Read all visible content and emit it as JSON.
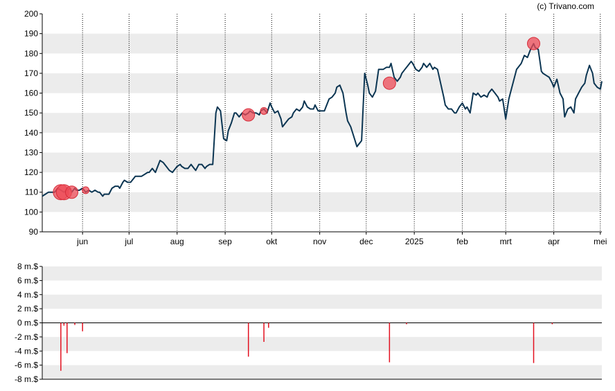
{
  "credit": "(c) Trivano.com",
  "colors": {
    "price_line": "#0b3552",
    "marker_fill": "#ee4b57",
    "marker_stroke": "#d62d3a",
    "volume_bar": "#e3101f",
    "band": "#ececec",
    "axis": "#000000"
  },
  "chart_data": [
    {
      "type": "line",
      "title": "",
      "xlabel": "",
      "ylabel": "",
      "ylim": [
        90,
        200
      ],
      "yticks": [
        "90",
        "100",
        "110",
        "120",
        "130",
        "140",
        "150",
        "160",
        "170",
        "180",
        "190",
        "200"
      ],
      "x_range": [
        "2024-05-06",
        "2025-05-02"
      ],
      "month_ticks": [
        {
          "label": "jun",
          "date": "2024-06-01"
        },
        {
          "label": "jul",
          "date": "2024-07-01"
        },
        {
          "label": "aug",
          "date": "2024-08-01"
        },
        {
          "label": "sep",
          "date": "2024-09-01"
        },
        {
          "label": "okt",
          "date": "2024-10-01"
        },
        {
          "label": "nov",
          "date": "2024-11-01"
        },
        {
          "label": "dec",
          "date": "2024-12-01"
        },
        {
          "label": "2025",
          "date": "2025-01-01"
        },
        {
          "label": "feb",
          "date": "2025-02-01"
        },
        {
          "label": "mrt",
          "date": "2025-03-01"
        },
        {
          "label": "apr",
          "date": "2025-04-01"
        },
        {
          "label": "mei",
          "date": "2025-05-01"
        }
      ],
      "grid": "alternating horizontal bands, dotted vertical month lines",
      "series": [
        {
          "points": [
            [
              "2024-05-06",
              108
            ],
            [
              "2024-05-08",
              109
            ],
            [
              "2024-05-10",
              110
            ],
            [
              "2024-05-14",
              110
            ],
            [
              "2024-05-16",
              112
            ],
            [
              "2024-05-18",
              111
            ],
            [
              "2024-05-20",
              110
            ],
            [
              "2024-05-22",
              111
            ],
            [
              "2024-05-24",
              112
            ],
            [
              "2024-05-25",
              110
            ],
            [
              "2024-05-27",
              112
            ],
            [
              "2024-05-28",
              111
            ],
            [
              "2024-05-30",
              111
            ],
            [
              "2024-06-01",
              112
            ],
            [
              "2024-06-03",
              110
            ],
            [
              "2024-06-05",
              111
            ],
            [
              "2024-06-07",
              110
            ],
            [
              "2024-06-09",
              111
            ],
            [
              "2024-06-11",
              110
            ],
            [
              "2024-06-12",
              110
            ],
            [
              "2024-06-14",
              108
            ],
            [
              "2024-06-15",
              109
            ],
            [
              "2024-06-17",
              109
            ],
            [
              "2024-06-18",
              109
            ],
            [
              "2024-06-20",
              112
            ],
            [
              "2024-06-22",
              113
            ],
            [
              "2024-06-24",
              113
            ],
            [
              "2024-06-25",
              112
            ],
            [
              "2024-06-27",
              115
            ],
            [
              "2024-06-28",
              116
            ],
            [
              "2024-06-30",
              115
            ],
            [
              "2024-07-02",
              115
            ],
            [
              "2024-07-04",
              117
            ],
            [
              "2024-07-05",
              118
            ],
            [
              "2024-07-07",
              118
            ],
            [
              "2024-07-09",
              118
            ],
            [
              "2024-07-11",
              119
            ],
            [
              "2024-07-13",
              120
            ],
            [
              "2024-07-14",
              120
            ],
            [
              "2024-07-16",
              122
            ],
            [
              "2024-07-18",
              120
            ],
            [
              "2024-07-19",
              122
            ],
            [
              "2024-07-21",
              126
            ],
            [
              "2024-07-23",
              125
            ],
            [
              "2024-07-25",
              123
            ],
            [
              "2024-07-27",
              121
            ],
            [
              "2024-07-29",
              120
            ],
            [
              "2024-07-30",
              121
            ],
            [
              "2024-08-01",
              123
            ],
            [
              "2024-08-03",
              124
            ],
            [
              "2024-08-04",
              123
            ],
            [
              "2024-08-06",
              122
            ],
            [
              "2024-08-08",
              122
            ],
            [
              "2024-08-10",
              124
            ],
            [
              "2024-08-12",
              122
            ],
            [
              "2024-08-13",
              121
            ],
            [
              "2024-08-15",
              124
            ],
            [
              "2024-08-17",
              124
            ],
            [
              "2024-08-19",
              122
            ],
            [
              "2024-08-20",
              123
            ],
            [
              "2024-08-22",
              124
            ],
            [
              "2024-08-24",
              124
            ],
            [
              "2024-08-26",
              150
            ],
            [
              "2024-08-27",
              153
            ],
            [
              "2024-08-29",
              151
            ],
            [
              "2024-08-31",
              137
            ],
            [
              "2024-09-02",
              136
            ],
            [
              "2024-09-03",
              141
            ],
            [
              "2024-09-05",
              145
            ],
            [
              "2024-09-07",
              150
            ],
            [
              "2024-09-08",
              150
            ],
            [
              "2024-09-10",
              148
            ],
            [
              "2024-09-12",
              150
            ],
            [
              "2024-09-14",
              149
            ],
            [
              "2024-09-16",
              150
            ],
            [
              "2024-09-17",
              151
            ],
            [
              "2024-09-19",
              150
            ],
            [
              "2024-09-21",
              150
            ],
            [
              "2024-09-23",
              149
            ],
            [
              "2024-09-24",
              151
            ],
            [
              "2024-09-26",
              152
            ],
            [
              "2024-09-28",
              150
            ],
            [
              "2024-09-30",
              155
            ],
            [
              "2024-10-01",
              153
            ],
            [
              "2024-10-03",
              150
            ],
            [
              "2024-10-05",
              151
            ],
            [
              "2024-10-07",
              147
            ],
            [
              "2024-10-08",
              143
            ],
            [
              "2024-10-10",
              145
            ],
            [
              "2024-10-12",
              147
            ],
            [
              "2024-10-14",
              148
            ],
            [
              "2024-10-15",
              150
            ],
            [
              "2024-10-17",
              152
            ],
            [
              "2024-10-19",
              151
            ],
            [
              "2024-10-21",
              153
            ],
            [
              "2024-10-22",
              156
            ],
            [
              "2024-10-24",
              153
            ],
            [
              "2024-10-26",
              152
            ],
            [
              "2024-10-28",
              152
            ],
            [
              "2024-10-29",
              154
            ],
            [
              "2024-10-31",
              151
            ],
            [
              "2024-11-02",
              151
            ],
            [
              "2024-11-04",
              151
            ],
            [
              "2024-11-05",
              153
            ],
            [
              "2024-11-07",
              157
            ],
            [
              "2024-11-09",
              158
            ],
            [
              "2024-11-11",
              160
            ],
            [
              "2024-11-12",
              163
            ],
            [
              "2024-11-14",
              164
            ],
            [
              "2024-11-16",
              160
            ],
            [
              "2024-11-18",
              150
            ],
            [
              "2024-11-19",
              146
            ],
            [
              "2024-11-21",
              143
            ],
            [
              "2024-11-23",
              138
            ],
            [
              "2024-11-25",
              133
            ],
            [
              "2024-11-26",
              134
            ],
            [
              "2024-11-28",
              136
            ],
            [
              "2024-11-30",
              170
            ],
            [
              "2024-12-02",
              164
            ],
            [
              "2024-12-03",
              160
            ],
            [
              "2024-12-05",
              158
            ],
            [
              "2024-12-07",
              161
            ],
            [
              "2024-12-09",
              172
            ],
            [
              "2024-12-10",
              172
            ],
            [
              "2024-12-12",
              172
            ],
            [
              "2024-12-14",
              173
            ],
            [
              "2024-12-16",
              173
            ],
            [
              "2024-12-17",
              175
            ],
            [
              "2024-12-19",
              168
            ],
            [
              "2024-12-21",
              166
            ],
            [
              "2024-12-23",
              168
            ],
            [
              "2024-12-24",
              170
            ],
            [
              "2024-12-26",
              172
            ],
            [
              "2024-12-28",
              174
            ],
            [
              "2024-12-30",
              176
            ],
            [
              "2024-12-31",
              175
            ],
            [
              "2025-01-02",
              172
            ],
            [
              "2025-01-04",
              171
            ],
            [
              "2025-01-06",
              173
            ],
            [
              "2025-01-07",
              175
            ],
            [
              "2025-01-09",
              173
            ],
            [
              "2025-01-11",
              175
            ],
            [
              "2025-01-13",
              172
            ],
            [
              "2025-01-14",
              173
            ],
            [
              "2025-01-16",
              172
            ],
            [
              "2025-01-18",
              165
            ],
            [
              "2025-01-20",
              158
            ],
            [
              "2025-01-21",
              154
            ],
            [
              "2025-01-23",
              152
            ],
            [
              "2025-01-25",
              152
            ],
            [
              "2025-01-27",
              150
            ],
            [
              "2025-01-28",
              150
            ],
            [
              "2025-01-30",
              153
            ],
            [
              "2025-02-01",
              155
            ],
            [
              "2025-02-03",
              152
            ],
            [
              "2025-02-04",
              153
            ],
            [
              "2025-02-06",
              150
            ],
            [
              "2025-02-08",
              160
            ],
            [
              "2025-02-10",
              159
            ],
            [
              "2025-02-11",
              160
            ],
            [
              "2025-02-13",
              158
            ],
            [
              "2025-02-15",
              159
            ],
            [
              "2025-02-17",
              158
            ],
            [
              "2025-02-18",
              160
            ],
            [
              "2025-02-20",
              162
            ],
            [
              "2025-02-22",
              160
            ],
            [
              "2025-02-24",
              158
            ],
            [
              "2025-02-25",
              156
            ],
            [
              "2025-02-27",
              157
            ],
            [
              "2025-03-01",
              147
            ],
            [
              "2025-03-03",
              157
            ],
            [
              "2025-03-04",
              160
            ],
            [
              "2025-03-06",
              166
            ],
            [
              "2025-03-08",
              172
            ],
            [
              "2025-03-10",
              174
            ],
            [
              "2025-03-11",
              175
            ],
            [
              "2025-03-13",
              179
            ],
            [
              "2025-03-15",
              178
            ],
            [
              "2025-03-17",
              182
            ],
            [
              "2025-03-19",
              185
            ],
            [
              "2025-03-20",
              183
            ],
            [
              "2025-03-22",
              182
            ],
            [
              "2025-03-24",
              171
            ],
            [
              "2025-03-25",
              170
            ],
            [
              "2025-03-27",
              169
            ],
            [
              "2025-03-29",
              168
            ],
            [
              "2025-03-31",
              165
            ],
            [
              "2025-04-01",
              163
            ],
            [
              "2025-04-03",
              167
            ],
            [
              "2025-04-05",
              160
            ],
            [
              "2025-04-07",
              157
            ],
            [
              "2025-04-08",
              148
            ],
            [
              "2025-04-10",
              152
            ],
            [
              "2025-04-12",
              153
            ],
            [
              "2025-04-14",
              150
            ],
            [
              "2025-04-15",
              157
            ],
            [
              "2025-04-17",
              160
            ],
            [
              "2025-04-19",
              163
            ],
            [
              "2025-04-21",
              165
            ],
            [
              "2025-04-22",
              169
            ],
            [
              "2025-04-24",
              174
            ],
            [
              "2025-04-26",
              170
            ],
            [
              "2025-04-27",
              165
            ],
            [
              "2025-04-29",
              163
            ],
            [
              "2025-05-01",
              162
            ],
            [
              "2025-05-02",
              166
            ]
          ]
        }
      ],
      "markers": [
        {
          "date": "2024-05-18",
          "value": 110,
          "size": "large"
        },
        {
          "date": "2024-05-20",
          "value": 110,
          "size": "large"
        },
        {
          "date": "2024-05-25",
          "value": 110,
          "size": "medium"
        },
        {
          "date": "2024-06-03",
          "value": 111,
          "size": "small"
        },
        {
          "date": "2024-09-16",
          "value": 149,
          "size": "medium"
        },
        {
          "date": "2024-09-26",
          "value": 151,
          "size": "small"
        },
        {
          "date": "2024-12-16",
          "value": 165,
          "size": "medium"
        },
        {
          "date": "2025-03-19",
          "value": 185,
          "size": "medium"
        }
      ]
    },
    {
      "type": "bar",
      "title": "",
      "xlabel": "",
      "ylabel": "",
      "ylim": [
        -8,
        8
      ],
      "yticks": [
        "-8 m.$",
        "-6 m.$",
        "-4 m.$",
        "-2 m.$",
        "0 m.$",
        "2 m.$",
        "4 m.$",
        "6 m.$",
        "8 m.$"
      ],
      "grid": "alternating horizontal bands",
      "bars": [
        {
          "date": "2024-05-18",
          "value": -6.8
        },
        {
          "date": "2024-05-20",
          "value": -0.4
        },
        {
          "date": "2024-05-22",
          "value": -4.3
        },
        {
          "date": "2024-05-27",
          "value": -0.3
        },
        {
          "date": "2024-06-01",
          "value": -1.2
        },
        {
          "date": "2024-09-16",
          "value": -4.8
        },
        {
          "date": "2024-09-26",
          "value": -2.7
        },
        {
          "date": "2024-09-29",
          "value": -0.7
        },
        {
          "date": "2024-12-16",
          "value": -5.6
        },
        {
          "date": "2024-12-27",
          "value": -0.2
        },
        {
          "date": "2025-03-19",
          "value": -5.7
        },
        {
          "date": "2025-03-31",
          "value": -0.2
        }
      ]
    }
  ]
}
